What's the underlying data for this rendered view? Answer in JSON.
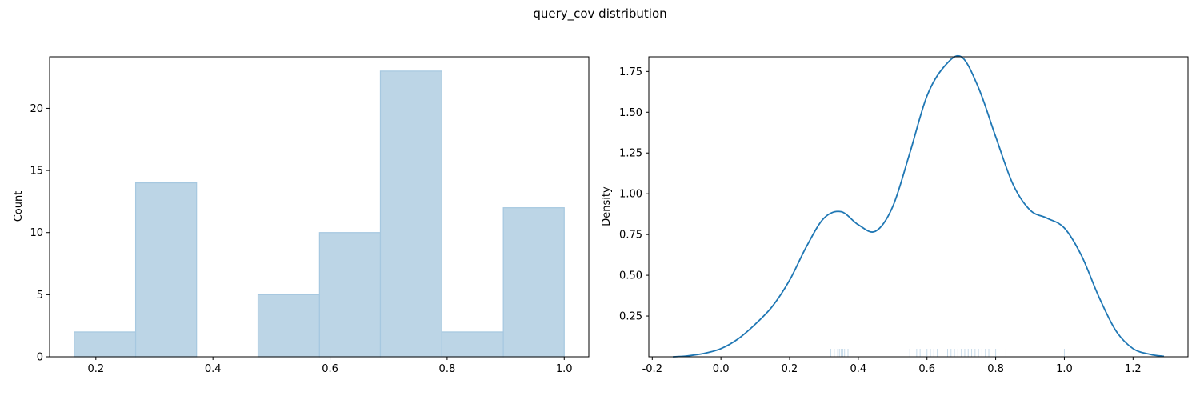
{
  "figure": {
    "title": "query_cov distribution"
  },
  "chart_data": [
    {
      "type": "histogram",
      "xlabel": "",
      "ylabel": "Count",
      "xlim": [
        0.121,
        1.042
      ],
      "ylim": [
        0,
        24.15
      ],
      "xticks": [
        0.2,
        0.4,
        0.6,
        0.8,
        1.0
      ],
      "xtick_labels": [
        "0.2",
        "0.4",
        "0.6",
        "0.8",
        "1.0"
      ],
      "yticks": [
        0,
        5,
        10,
        15,
        20
      ],
      "ytick_labels": [
        "0",
        "5",
        "10",
        "15",
        "20"
      ],
      "bin_edges": [
        0.163,
        0.268,
        0.372,
        0.477,
        0.582,
        0.686,
        0.791,
        0.896,
        1.0
      ],
      "counts": [
        2,
        14,
        0,
        5,
        10,
        23,
        2,
        12
      ],
      "colors": {
        "fill": "#bcd5e6",
        "edge": "#a6c8e0"
      },
      "grid": false
    },
    {
      "type": "line",
      "subtype": "kde",
      "xlabel": "",
      "ylabel": "Density",
      "xlim": [
        -0.21,
        1.36
      ],
      "ylim": [
        0,
        1.84
      ],
      "xticks": [
        -0.2,
        0.0,
        0.2,
        0.4,
        0.6,
        0.8,
        1.0,
        1.2
      ],
      "xtick_labels": [
        "-0.2",
        "0.0",
        "0.2",
        "0.4",
        "0.6",
        "0.8",
        "1.0",
        "1.2"
      ],
      "yticks": [
        0.25,
        0.5,
        0.75,
        1.0,
        1.25,
        1.5,
        1.75
      ],
      "ytick_labels": [
        "0.25",
        "0.50",
        "0.75",
        "1.00",
        "1.25",
        "1.50",
        "1.75"
      ],
      "series": [
        {
          "x": [
            -0.14,
            -0.1,
            -0.05,
            0.0,
            0.05,
            0.1,
            0.15,
            0.2,
            0.25,
            0.3,
            0.35,
            0.4,
            0.45,
            0.5,
            0.55,
            0.6,
            0.65,
            0.7,
            0.75,
            0.8,
            0.85,
            0.9,
            0.95,
            1.0,
            1.05,
            1.1,
            1.15,
            1.2,
            1.25,
            1.29
          ],
          "y": [
            0.0,
            0.005,
            0.02,
            0.05,
            0.11,
            0.2,
            0.31,
            0.47,
            0.68,
            0.85,
            0.89,
            0.81,
            0.77,
            0.92,
            1.25,
            1.6,
            1.78,
            1.84,
            1.65,
            1.35,
            1.06,
            0.9,
            0.85,
            0.79,
            0.62,
            0.37,
            0.16,
            0.05,
            0.015,
            0.003
          ]
        }
      ],
      "rug": [
        0.32,
        0.33,
        0.34,
        0.345,
        0.35,
        0.355,
        0.36,
        0.37,
        0.55,
        0.57,
        0.58,
        0.6,
        0.61,
        0.62,
        0.63,
        0.66,
        0.67,
        0.68,
        0.69,
        0.7,
        0.71,
        0.72,
        0.73,
        0.74,
        0.75,
        0.76,
        0.77,
        0.78,
        0.8,
        0.83,
        1.0
      ],
      "colors": {
        "line": "#1f77b4",
        "rug": "#c7dbea"
      },
      "grid": false
    }
  ]
}
